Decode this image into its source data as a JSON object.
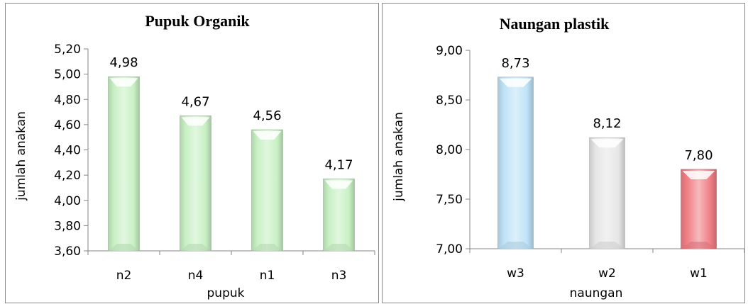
{
  "chart_data": [
    {
      "type": "bar",
      "title": "Pupuk Organik",
      "xlabel": "pupuk",
      "ylabel": "jumlah anakan",
      "categories": [
        "n2",
        "n4",
        "n1",
        "n3"
      ],
      "values": [
        4.98,
        4.67,
        4.56,
        4.17
      ],
      "value_labels": [
        "4,98",
        "4,67",
        "4,56",
        "4,17"
      ],
      "ylim": [
        3.6,
        5.2
      ],
      "yticks": [
        "3,60",
        "3,80",
        "4,00",
        "4,20",
        "4,40",
        "4,60",
        "4,80",
        "5,00",
        "5,20"
      ],
      "colors": [
        "#c8f0c4",
        "#c8f0c4",
        "#c8f0c4",
        "#c8f0c4"
      ],
      "grid": false,
      "legend": "none"
    },
    {
      "type": "bar",
      "title": "Naungan plastik",
      "xlabel": "naungan",
      "ylabel": "jumlah anakan",
      "categories": [
        "w3",
        "w2",
        "w1"
      ],
      "values": [
        8.73,
        8.12,
        7.8
      ],
      "value_labels": [
        "8,73",
        "8,12",
        "7,80"
      ],
      "ylim": [
        7.0,
        9.0
      ],
      "yticks": [
        "7,00",
        "7,50",
        "8,00",
        "8,50",
        "9,00"
      ],
      "colors": [
        "#bfe3f7",
        "#e6e6e6",
        "#f07f86"
      ],
      "grid": false,
      "legend": "none"
    }
  ]
}
